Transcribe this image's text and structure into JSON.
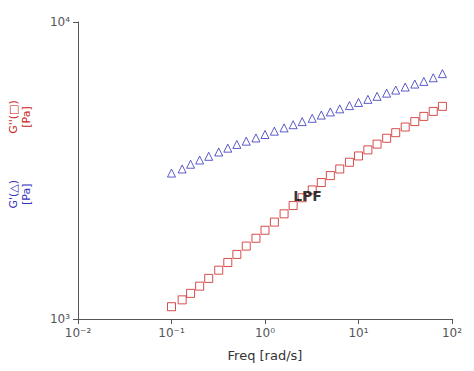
{
  "chart_data": {
    "type": "scatter",
    "xlabel": "Freq [rad/s]",
    "log": true,
    "grid": false,
    "xlim": [
      0.01,
      100
    ],
    "ylim": [
      1000,
      10000
    ],
    "xticks": [
      {
        "value": 0.01,
        "label": "10⁻²"
      },
      {
        "value": 0.1,
        "label": "10⁻¹"
      },
      {
        "value": 1,
        "label": "10⁰"
      },
      {
        "value": 10,
        "label": "10¹"
      },
      {
        "value": 100,
        "label": "10²"
      }
    ],
    "yticks": [
      {
        "value": 1000,
        "label": "10³"
      },
      {
        "value": 10000,
        "label": "10⁴"
      }
    ],
    "annotations": [
      {
        "text": "LPF",
        "x": 2.0,
        "y": 2600
      }
    ],
    "series": [
      {
        "ylabel": "G'(△)\n[Pa]",
        "color": "#3333bb",
        "marker": "triangle",
        "x": [
          0.1,
          0.13,
          0.16,
          0.2,
          0.25,
          0.32,
          0.4,
          0.5,
          0.63,
          0.8,
          1.0,
          1.26,
          1.6,
          2.0,
          2.5,
          3.2,
          4.0,
          5.0,
          6.3,
          8.0,
          10.0,
          12.6,
          15.8,
          20.0,
          25.0,
          31.6,
          40.0,
          50.0,
          63.0,
          79.0
        ],
        "values": [
          3100,
          3200,
          3320,
          3430,
          3530,
          3650,
          3760,
          3870,
          3970,
          4070,
          4180,
          4290,
          4400,
          4510,
          4620,
          4740,
          4860,
          4980,
          5100,
          5230,
          5360,
          5490,
          5620,
          5760,
          5900,
          6040,
          6180,
          6310,
          6490,
          6700
        ]
      },
      {
        "ylabel": "G''(□)\n[Pa]",
        "color": "#cc2222",
        "marker": "square",
        "x": [
          0.1,
          0.13,
          0.16,
          0.2,
          0.25,
          0.32,
          0.4,
          0.5,
          0.63,
          0.8,
          1.0,
          1.26,
          1.6,
          2.0,
          2.5,
          3.2,
          4.0,
          5.0,
          6.3,
          8.0,
          10.0,
          12.6,
          15.8,
          20.0,
          25.0,
          31.6,
          40.0,
          50.0,
          63.0,
          79.0
        ],
        "values": [
          1100,
          1160,
          1220,
          1290,
          1370,
          1460,
          1550,
          1650,
          1760,
          1870,
          1990,
          2120,
          2260,
          2410,
          2560,
          2720,
          2880,
          3040,
          3200,
          3370,
          3540,
          3710,
          3880,
          4060,
          4240,
          4430,
          4620,
          4810,
          5000,
          5200
        ]
      }
    ]
  }
}
